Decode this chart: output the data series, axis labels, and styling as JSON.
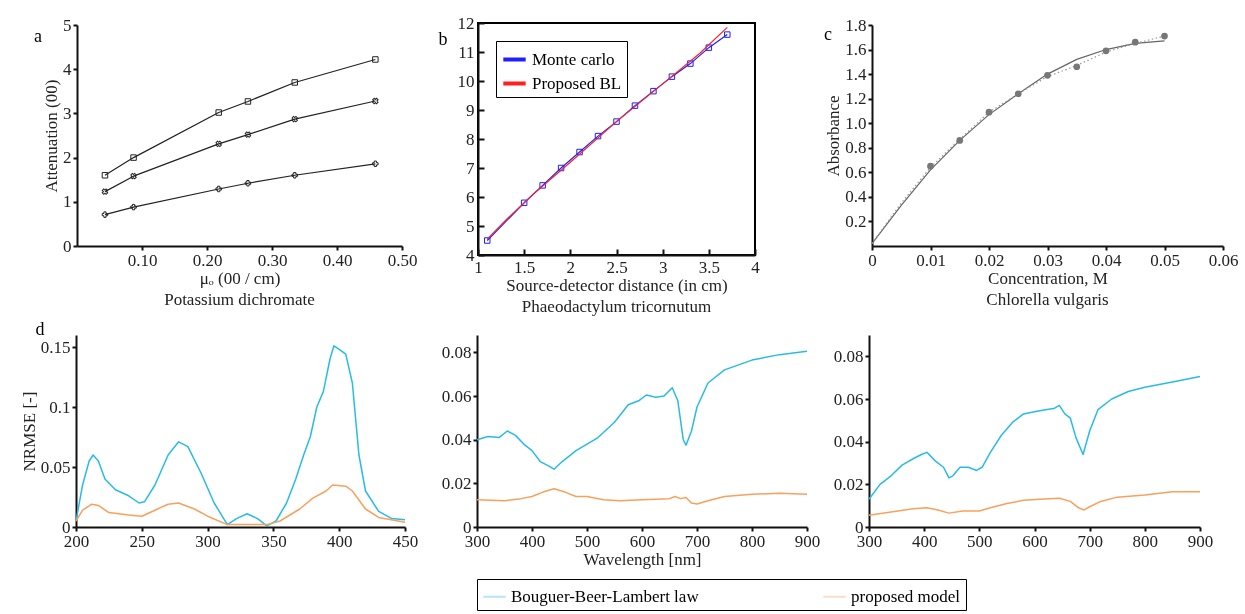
{
  "chart_data": [
    {
      "type": "line",
      "title": "Potassium dichromate",
      "xlabel": "μₒ (00 / cm)",
      "ylabel": "Attenuation (00)",
      "annotations": [
        "a"
      ],
      "x": [
        0.043,
        0.087,
        0.218,
        0.263,
        0.335,
        0.459
      ],
      "series": [
        {
          "color": "#222222",
          "marker": "square",
          "values": [
            1.6,
            2.0,
            3.02,
            3.27,
            3.7,
            4.22
          ]
        },
        {
          "color": "#222222",
          "marker": "cross",
          "values": [
            1.23,
            1.58,
            2.31,
            2.52,
            2.87,
            3.28
          ]
        },
        {
          "color": "#222222",
          "marker": "cross",
          "values": [
            0.71,
            0.88,
            1.29,
            1.42,
            1.6,
            1.86
          ]
        }
      ],
      "xlim": [
        0,
        0.5
      ],
      "xticks": [
        {
          "value": 0.1,
          "label": "0.10"
        },
        {
          "value": 0.2,
          "label": "0.20"
        },
        {
          "value": 0.3,
          "label": "0.30"
        },
        {
          "value": 0.4,
          "label": "0.40"
        },
        {
          "value": 0.5,
          "label": "0.50"
        }
      ],
      "ylim": [
        0,
        5
      ],
      "yticks": [
        0,
        1,
        2,
        3,
        4,
        5
      ]
    },
    {
      "type": "line",
      "title": "Phaeodactylum tricornutum",
      "xlabel": "Source-detector distance (in cm)",
      "annotations": [
        "b"
      ],
      "legend": "top left",
      "series": [
        {
          "name": "Monte carlo",
          "color": "#1f1fff",
          "marker": "square",
          "x": [
            1.1,
            1.5,
            1.7,
            1.9,
            2.1,
            2.3,
            2.5,
            2.7,
            2.9,
            3.1,
            3.3,
            3.5,
            3.7
          ],
          "values": [
            4.5,
            5.8,
            6.4,
            7.0,
            7.55,
            8.1,
            8.6,
            9.15,
            9.65,
            10.15,
            10.6,
            11.15,
            11.6
          ]
        },
        {
          "name": "Proposed BL",
          "color": "#ff2020",
          "x": [
            1.1,
            1.3,
            1.6,
            2.0,
            2.5,
            3.0,
            3.4,
            3.7
          ],
          "values": [
            4.55,
            5.2,
            6.1,
            7.2,
            8.6,
            9.9,
            10.95,
            11.85
          ]
        }
      ],
      "xlim": [
        1,
        4
      ],
      "xticks": [
        1,
        1.5,
        2,
        2.5,
        3,
        3.5,
        4
      ],
      "ylim": [
        4,
        12
      ],
      "yticks": [
        4,
        5,
        6,
        7,
        8,
        9,
        10,
        11,
        12
      ]
    },
    {
      "type": "line",
      "title": "Chlorella vulgaris",
      "xlabel": "Concentration, M",
      "ylabel": "Absorbance",
      "annotations": [
        "c"
      ],
      "series": [
        {
          "color": "#666666",
          "line_style": "solid",
          "x": [
            0,
            0.005,
            0.01,
            0.015,
            0.02,
            0.025,
            0.03,
            0.035,
            0.04,
            0.045,
            0.05
          ],
          "values": [
            0.02,
            0.33,
            0.62,
            0.86,
            1.07,
            1.24,
            1.4,
            1.52,
            1.6,
            1.65,
            1.67
          ]
        },
        {
          "color": "#999999",
          "line_style": "dotted",
          "x": [
            0,
            0.005,
            0.01,
            0.015,
            0.02,
            0.025,
            0.03,
            0.035,
            0.04,
            0.045,
            0.05
          ],
          "values": [
            0.02,
            0.35,
            0.64,
            0.87,
            1.09,
            1.24,
            1.38,
            1.47,
            1.58,
            1.65,
            1.71
          ]
        },
        {
          "type": "scatter",
          "color": "#777777",
          "marker": "circle",
          "x": [
            0.01,
            0.015,
            0.02,
            0.025,
            0.03,
            0.035,
            0.04,
            0.045,
            0.05
          ],
          "values": [
            0.65,
            0.86,
            1.09,
            1.24,
            1.39,
            1.46,
            1.59,
            1.66,
            1.71
          ]
        }
      ],
      "xlim": [
        0,
        0.06
      ],
      "xticks": [
        0,
        0.01,
        0.02,
        0.03,
        0.04,
        0.05,
        0.06
      ],
      "ylim": [
        0,
        1.8
      ],
      "yticks": [
        0.2,
        0.4,
        0.6,
        0.8,
        {
          "value": 1,
          "label": "1.0"
        },
        1.2,
        1.4,
        1.6,
        1.8
      ]
    },
    {
      "type": "line",
      "ylabel": "NRMSE [-]",
      "annotations": [
        "d"
      ],
      "series": [
        {
          "color": "#29bbe8",
          "x": [
            200,
            205,
            210,
            213,
            217,
            222,
            230,
            240,
            248,
            252,
            260,
            270,
            278,
            285,
            295,
            305,
            315,
            322,
            330,
            338,
            345,
            352,
            360,
            367,
            373,
            378,
            383,
            388,
            393,
            396,
            400,
            405,
            410,
            415,
            420,
            430,
            440,
            450
          ],
          "values": [
            0.005,
            0.035,
            0.055,
            0.06,
            0.055,
            0.04,
            0.031,
            0.026,
            0.02,
            0.021,
            0.035,
            0.06,
            0.071,
            0.067,
            0.045,
            0.02,
            0.002,
            0.007,
            0.011,
            0.007,
            0.001,
            0.005,
            0.02,
            0.04,
            0.06,
            0.075,
            0.1,
            0.113,
            0.14,
            0.151,
            0.148,
            0.144,
            0.12,
            0.06,
            0.03,
            0.013,
            0.007,
            0.006
          ]
        },
        {
          "color": "#f7a15c",
          "x": [
            200,
            205,
            212,
            217,
            225,
            240,
            250,
            260,
            270,
            278,
            290,
            300,
            315,
            330,
            345,
            355,
            370,
            380,
            390,
            395,
            405,
            410,
            420,
            430,
            450
          ],
          "values": [
            0.005,
            0.014,
            0.019,
            0.018,
            0.012,
            0.01,
            0.009,
            0.014,
            0.019,
            0.02,
            0.015,
            0.009,
            0.002,
            0.002,
            0.002,
            0.005,
            0.015,
            0.024,
            0.03,
            0.035,
            0.034,
            0.03,
            0.015,
            0.008,
            0.004
          ]
        }
      ],
      "xlim": [
        200,
        450
      ],
      "xticks": [
        200,
        250,
        300,
        350,
        400,
        450
      ],
      "ylim": [
        0,
        0.16
      ],
      "yticks": [
        0,
        0.05,
        0.1,
        0.15
      ]
    },
    {
      "type": "line",
      "xlabel": "Wavelength [nm]",
      "legend": "bottom",
      "series": [
        {
          "name": "Bouguer-Beer-Lambert law",
          "color": "#29bbe8",
          "x": [
            300,
            320,
            340,
            355,
            370,
            385,
            400,
            415,
            430,
            440,
            455,
            480,
            500,
            520,
            550,
            575,
            595,
            608,
            625,
            640,
            655,
            665,
            675,
            680,
            690,
            700,
            720,
            750,
            800,
            850,
            900
          ],
          "values": [
            0.04,
            0.0415,
            0.041,
            0.044,
            0.042,
            0.038,
            0.035,
            0.03,
            0.028,
            0.0265,
            0.03,
            0.035,
            0.038,
            0.041,
            0.048,
            0.056,
            0.058,
            0.0605,
            0.0595,
            0.06,
            0.0638,
            0.058,
            0.04,
            0.0375,
            0.044,
            0.055,
            0.066,
            0.072,
            0.0765,
            0.079,
            0.0805
          ]
        },
        {
          "name": "proposed model",
          "color": "#f7a15c",
          "x": [
            300,
            350,
            380,
            400,
            420,
            440,
            460,
            480,
            500,
            530,
            560,
            600,
            650,
            660,
            670,
            680,
            690,
            700,
            720,
            750,
            800,
            850,
            900
          ],
          "values": [
            0.0125,
            0.012,
            0.013,
            0.014,
            0.016,
            0.0175,
            0.016,
            0.014,
            0.014,
            0.0125,
            0.012,
            0.0125,
            0.013,
            0.014,
            0.013,
            0.0135,
            0.011,
            0.0105,
            0.012,
            0.014,
            0.015,
            0.0155,
            0.015
          ]
        }
      ],
      "xlim": [
        300,
        900
      ],
      "xticks": [
        300,
        400,
        500,
        600,
        700,
        800,
        900
      ],
      "ylim": [
        0,
        0.088
      ],
      "yticks": [
        0,
        0.02,
        0.04,
        0.06,
        0.08
      ]
    },
    {
      "type": "line",
      "series": [
        {
          "color": "#29bbe8",
          "x": [
            300,
            320,
            340,
            360,
            380,
            395,
            405,
            420,
            435,
            445,
            452,
            465,
            480,
            495,
            505,
            520,
            540,
            560,
            580,
            600,
            620,
            635,
            645,
            655,
            665,
            675,
            688,
            700,
            715,
            740,
            770,
            800,
            850,
            900
          ],
          "values": [
            0.013,
            0.02,
            0.024,
            0.029,
            0.032,
            0.034,
            0.035,
            0.031,
            0.028,
            0.023,
            0.024,
            0.028,
            0.028,
            0.0265,
            0.028,
            0.035,
            0.043,
            0.049,
            0.053,
            0.054,
            0.055,
            0.0555,
            0.057,
            0.053,
            0.051,
            0.042,
            0.034,
            0.045,
            0.055,
            0.06,
            0.0635,
            0.0655,
            0.068,
            0.0705
          ]
        },
        {
          "color": "#f7a15c",
          "x": [
            300,
            340,
            380,
            405,
            425,
            445,
            470,
            500,
            520,
            550,
            580,
            610,
            645,
            665,
            680,
            690,
            700,
            720,
            750,
            800,
            850,
            900
          ],
          "values": [
            0.0055,
            0.007,
            0.0085,
            0.009,
            0.008,
            0.0065,
            0.0075,
            0.0075,
            0.009,
            0.011,
            0.0125,
            0.013,
            0.0135,
            0.012,
            0.009,
            0.008,
            0.0095,
            0.012,
            0.014,
            0.015,
            0.0165,
            0.0165
          ]
        }
      ],
      "xlim": [
        300,
        900
      ],
      "xticks": [
        300,
        400,
        500,
        600,
        700,
        800,
        900
      ],
      "ylim": [
        0,
        0.09
      ],
      "yticks": [
        0,
        0.02,
        0.04,
        0.06,
        0.08
      ]
    }
  ]
}
